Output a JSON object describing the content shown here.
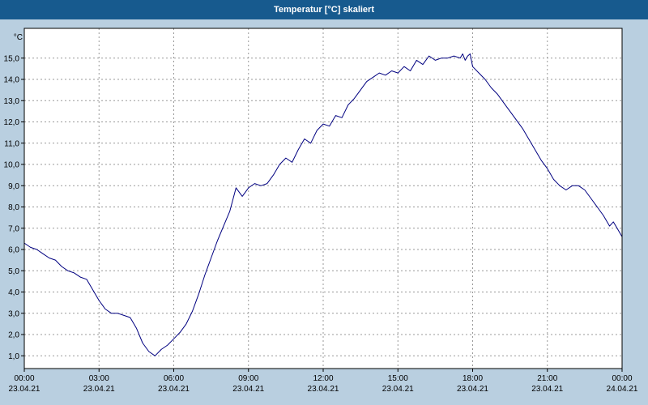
{
  "title": "Temperatur [°C] skaliert",
  "colors": {
    "titlebar": "#175a8e",
    "title_text": "#ffffff",
    "background": "#b9cfe0",
    "plot_bg": "#ffffff",
    "line": "#000080",
    "grid": "#999999",
    "axis": "#000000",
    "tick_text": "#000000"
  },
  "chart_data": {
    "type": "line",
    "title": "Temperatur [°C] skaliert",
    "y_axis_unit": "°C",
    "grid": true,
    "legend": "none",
    "xlim": [
      0,
      24
    ],
    "ylim": [
      0.4,
      16.4
    ],
    "y_ticks": [
      {
        "value": 1,
        "label": "1,0"
      },
      {
        "value": 2,
        "label": "2,0"
      },
      {
        "value": 3,
        "label": "3,0"
      },
      {
        "value": 4,
        "label": "4,0"
      },
      {
        "value": 5,
        "label": "5,0"
      },
      {
        "value": 6,
        "label": "6,0"
      },
      {
        "value": 7,
        "label": "7,0"
      },
      {
        "value": 8,
        "label": "8,0"
      },
      {
        "value": 9,
        "label": "9,0"
      },
      {
        "value": 10,
        "label": "10,0"
      },
      {
        "value": 11,
        "label": "11,0"
      },
      {
        "value": 12,
        "label": "12,0"
      },
      {
        "value": 13,
        "label": "13,0"
      },
      {
        "value": 14,
        "label": "14,0"
      },
      {
        "value": 15,
        "label": "15,0"
      }
    ],
    "x_ticks": [
      {
        "hour": 0,
        "time": "00:00",
        "date": "23.04.21"
      },
      {
        "hour": 3,
        "time": "03:00",
        "date": "23.04.21"
      },
      {
        "hour": 6,
        "time": "06:00",
        "date": "23.04.21"
      },
      {
        "hour": 9,
        "time": "09:00",
        "date": "23.04.21"
      },
      {
        "hour": 12,
        "time": "12:00",
        "date": "23.04.21"
      },
      {
        "hour": 15,
        "time": "15:00",
        "date": "23.04.21"
      },
      {
        "hour": 18,
        "time": "18:00",
        "date": "23.04.21"
      },
      {
        "hour": 21,
        "time": "21:00",
        "date": "23.04.21"
      },
      {
        "hour": 24,
        "time": "00:00",
        "date": "24.04.21"
      }
    ],
    "series": [
      {
        "name": "Temperatur [°C]",
        "x": [
          0,
          0.25,
          0.5,
          0.75,
          1,
          1.25,
          1.5,
          1.75,
          2,
          2.25,
          2.5,
          2.75,
          3,
          3.25,
          3.5,
          3.75,
          4,
          4.25,
          4.5,
          4.75,
          5,
          5.25,
          5.5,
          5.75,
          6,
          6.25,
          6.5,
          6.75,
          7,
          7.25,
          7.5,
          7.75,
          8,
          8.25,
          8.5,
          8.75,
          9,
          9.25,
          9.5,
          9.75,
          10,
          10.25,
          10.5,
          10.75,
          11,
          11.25,
          11.5,
          11.75,
          12,
          12.25,
          12.5,
          12.75,
          13,
          13.25,
          13.5,
          13.75,
          14,
          14.25,
          14.5,
          14.75,
          15,
          15.25,
          15.5,
          15.75,
          16,
          16.25,
          16.5,
          16.75,
          17,
          17.25,
          17.5,
          17.6,
          17.7,
          17.8,
          17.9,
          18,
          18.25,
          18.5,
          18.75,
          19,
          19.25,
          19.5,
          19.75,
          20,
          20.25,
          20.5,
          20.75,
          21,
          21.25,
          21.5,
          21.75,
          22,
          22.25,
          22.5,
          22.75,
          23,
          23.25,
          23.5,
          23.65,
          23.8,
          24
        ],
        "y": [
          6.3,
          6.1,
          6.0,
          5.8,
          5.6,
          5.5,
          5.2,
          5.0,
          4.9,
          4.7,
          4.6,
          4.1,
          3.6,
          3.2,
          3.0,
          3.0,
          2.9,
          2.8,
          2.3,
          1.6,
          1.2,
          1.0,
          1.3,
          1.5,
          1.8,
          2.1,
          2.5,
          3.1,
          3.9,
          4.8,
          5.6,
          6.4,
          7.1,
          7.8,
          8.9,
          8.5,
          8.9,
          9.1,
          9.0,
          9.1,
          9.5,
          10.0,
          10.3,
          10.1,
          10.7,
          11.2,
          11.0,
          11.6,
          11.9,
          11.8,
          12.3,
          12.2,
          12.8,
          13.1,
          13.5,
          13.9,
          14.1,
          14.3,
          14.2,
          14.4,
          14.3,
          14.6,
          14.4,
          14.9,
          14.7,
          15.1,
          14.9,
          15.0,
          15.0,
          15.1,
          15.0,
          15.2,
          14.9,
          15.1,
          15.2,
          14.6,
          14.3,
          14.0,
          13.6,
          13.3,
          12.9,
          12.5,
          12.1,
          11.7,
          11.2,
          10.7,
          10.2,
          9.8,
          9.3,
          9.0,
          8.8,
          9.0,
          9.0,
          8.8,
          8.4,
          8.0,
          7.6,
          7.1,
          7.3,
          7.0,
          6.6
        ]
      }
    ]
  }
}
